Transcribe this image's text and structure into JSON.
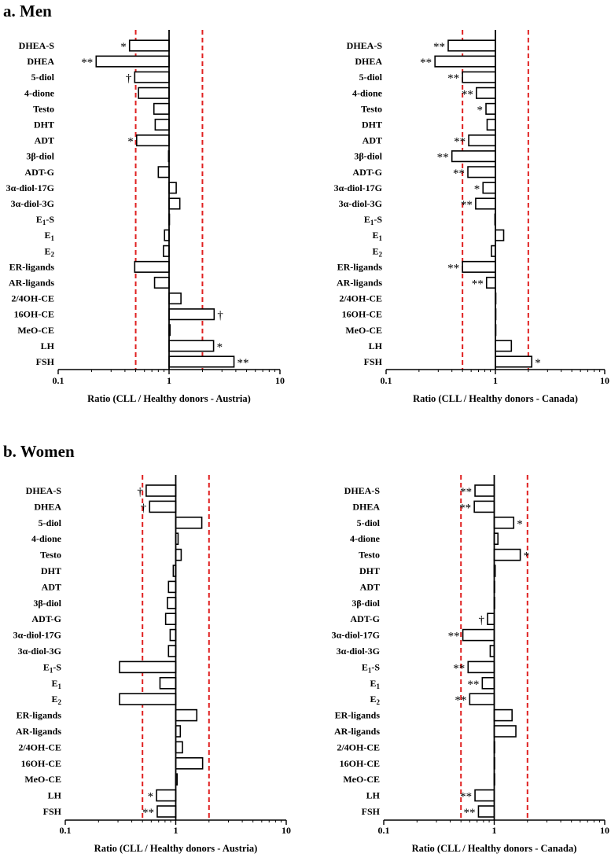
{
  "sections": {
    "a": {
      "title": "a. Men"
    },
    "b": {
      "title": "b. Women"
    }
  },
  "colors": {
    "reference_line": "#e02020",
    "bar_fill": "#ffffff",
    "bar_stroke": "#000000",
    "axis": "#000000"
  },
  "chart_data": [
    {
      "id": "men-austria",
      "type": "bar",
      "orientation": "horizontal",
      "xscale": "log",
      "xlim": [
        0.1,
        10
      ],
      "xticks": [
        "0.1",
        "1",
        "10"
      ],
      "xlabel": "Ratio (CLL / Healthy donors - Austria)",
      "baseline": 1,
      "reference_lines": [
        0.5,
        2
      ],
      "categories": [
        "DHEA-S",
        "DHEA",
        "5-diol",
        "4-dione",
        "Testo",
        "DHT",
        "ADT",
        "3β-diol",
        "ADT-G",
        "3α-diol-17G",
        "3α-diol-3G",
        "E1-S",
        "E1",
        "E2",
        "ER-ligands",
        "AR-ligands",
        "2/4OH-CE",
        "16OH-CE",
        "MeO-CE",
        "LH",
        "FSH"
      ],
      "values": [
        0.44,
        0.22,
        0.49,
        0.53,
        0.73,
        0.75,
        0.51,
        0.99,
        0.8,
        1.16,
        1.25,
        1.0,
        0.91,
        0.89,
        0.49,
        0.74,
        1.28,
        2.55,
        1.02,
        2.52,
        3.85
      ],
      "annotations": [
        "*",
        "**",
        "†",
        "",
        "",
        "",
        "*",
        "",
        "",
        "",
        "",
        "",
        "",
        "",
        "",
        "",
        "",
        "†",
        "",
        "*",
        "**"
      ]
    },
    {
      "id": "men-canada",
      "type": "bar",
      "orientation": "horizontal",
      "xscale": "log",
      "xlim": [
        0.1,
        10
      ],
      "xticks": [
        "0.1",
        "1",
        "10"
      ],
      "xlabel": "Ratio (CLL / Healthy donors - Canada)",
      "baseline": 1,
      "reference_lines": [
        0.5,
        2
      ],
      "categories": [
        "DHEA-S",
        "DHEA",
        "5-diol",
        "4-dione",
        "Testo",
        "DHT",
        "ADT",
        "3β-diol",
        "ADT-G",
        "3α-diol-17G",
        "3α-diol-3G",
        "E1-S",
        "E1",
        "E2",
        "ER-ligands",
        "AR-ligands",
        "2/4OH-CE",
        "16OH-CE",
        "MeO-CE",
        "LH",
        "FSH"
      ],
      "values": [
        0.37,
        0.28,
        0.5,
        0.67,
        0.82,
        0.84,
        0.57,
        0.4,
        0.56,
        0.77,
        0.66,
        0.99,
        1.19,
        0.92,
        0.5,
        0.83,
        1.0,
        1.0,
        1.0,
        1.4,
        2.15
      ],
      "annotations": [
        "**",
        "**",
        "**",
        "**",
        "*",
        "",
        "**",
        "**",
        "**",
        "*",
        "**",
        "",
        "",
        "",
        "**",
        "**",
        "",
        "",
        "",
        "",
        "*"
      ]
    },
    {
      "id": "women-austria",
      "type": "bar",
      "orientation": "horizontal",
      "xscale": "log",
      "xlim": [
        0.1,
        10
      ],
      "xticks": [
        "0.1",
        "1",
        "10"
      ],
      "xlabel": "Ratio (CLL / Healthy donors - Austria)",
      "baseline": 1,
      "reference_lines": [
        0.5,
        2
      ],
      "categories": [
        "DHEA-S",
        "DHEA",
        "5-diol",
        "4-dione",
        "Testo",
        "DHT",
        "ADT",
        "3β-diol",
        "ADT-G",
        "3α-diol-17G",
        "3α-diol-3G",
        "E1-S",
        "E1",
        "E2",
        "ER-ligands",
        "AR-ligands",
        "2/4OH-CE",
        "16OH-CE",
        "MeO-CE",
        "LH",
        "FSH"
      ],
      "values": [
        0.54,
        0.58,
        1.72,
        1.05,
        1.12,
        0.95,
        0.86,
        0.84,
        0.81,
        0.89,
        0.86,
        0.31,
        0.72,
        0.31,
        1.55,
        1.1,
        1.15,
        1.75,
        1.03,
        0.67,
        0.68
      ],
      "annotations": [
        "†",
        "†",
        "",
        "",
        "",
        "",
        "",
        "",
        "",
        "",
        "",
        "",
        "",
        "",
        "",
        "",
        "",
        "",
        "",
        "*",
        "**"
      ]
    },
    {
      "id": "women-canada",
      "type": "bar",
      "orientation": "horizontal",
      "xscale": "log",
      "xlim": [
        0.1,
        10
      ],
      "xticks": [
        "0.1",
        "1",
        "10"
      ],
      "xlabel": "Ratio (CLL / Healthy donors - Canada)",
      "baseline": 1,
      "reference_lines": [
        0.5,
        2
      ],
      "categories": [
        "DHEA-S",
        "DHEA",
        "5-diol",
        "4-dione",
        "Testo",
        "DHT",
        "ADT",
        "3β-diol",
        "ADT-G",
        "3α-diol-17G",
        "3α-diol-3G",
        "E1-S",
        "E1",
        "E2",
        "ER-ligands",
        "AR-ligands",
        "2/4OH-CE",
        "16OH-CE",
        "MeO-CE",
        "LH",
        "FSH"
      ],
      "values": [
        0.67,
        0.66,
        1.5,
        1.08,
        1.72,
        1.02,
        1.0,
        1.0,
        0.87,
        0.52,
        0.92,
        0.58,
        0.78,
        0.6,
        1.45,
        1.57,
        1.0,
        1.0,
        1.0,
        0.67,
        0.72
      ],
      "annotations": [
        "**",
        "**",
        "*",
        "",
        "*",
        "",
        "",
        "",
        "†",
        "**",
        "",
        "**",
        "**",
        "**",
        "",
        "",
        "",
        "",
        "",
        "**",
        "**"
      ]
    }
  ]
}
